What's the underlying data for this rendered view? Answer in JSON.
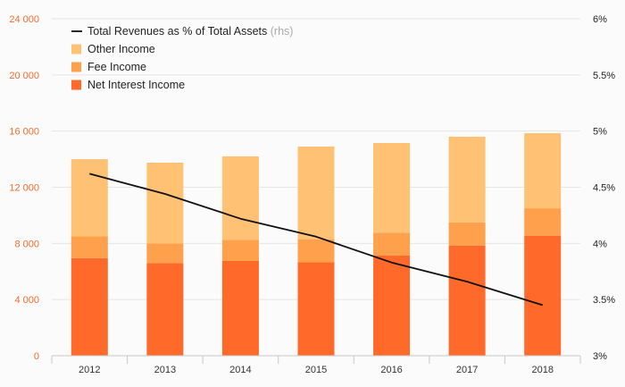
{
  "chart_data": {
    "type": "bar",
    "stacked": true,
    "categories": [
      "2012",
      "2013",
      "2014",
      "2015",
      "2016",
      "2017",
      "2018"
    ],
    "series": [
      {
        "name": "Net Interest Income",
        "color": "#ff6a2b",
        "values": [
          6950,
          6600,
          6750,
          6650,
          7150,
          7850,
          8550
        ]
      },
      {
        "name": "Fee Income",
        "color": "#ffa04c",
        "values": [
          1550,
          1400,
          1500,
          1650,
          1600,
          1650,
          1950
        ]
      },
      {
        "name": "Other Income",
        "color": "#ffc174",
        "values": [
          5500,
          5750,
          5950,
          6600,
          6400,
          6100,
          5350
        ]
      }
    ],
    "line_series": {
      "name": "Total Revenues as % of Total Assets",
      "note": "(rhs)",
      "color": "#111111",
      "values": [
        4.62,
        4.44,
        4.22,
        4.06,
        3.83,
        3.66,
        3.45
      ]
    },
    "y_left": {
      "min": 0,
      "max": 24000,
      "ticks": [
        "0",
        "4 000",
        "8 000",
        "12 000",
        "16 000",
        "20 000",
        "24 000"
      ],
      "color": "#f36c2c"
    },
    "y_right": {
      "min": 3,
      "max": 6,
      "ticks": [
        "3%",
        "3.5%",
        "4%",
        "4.5%",
        "5%",
        "5.5%",
        "6%"
      ]
    },
    "legend_order": [
      "line",
      2,
      1,
      0
    ],
    "legend_position": "top-left",
    "grid": true
  }
}
